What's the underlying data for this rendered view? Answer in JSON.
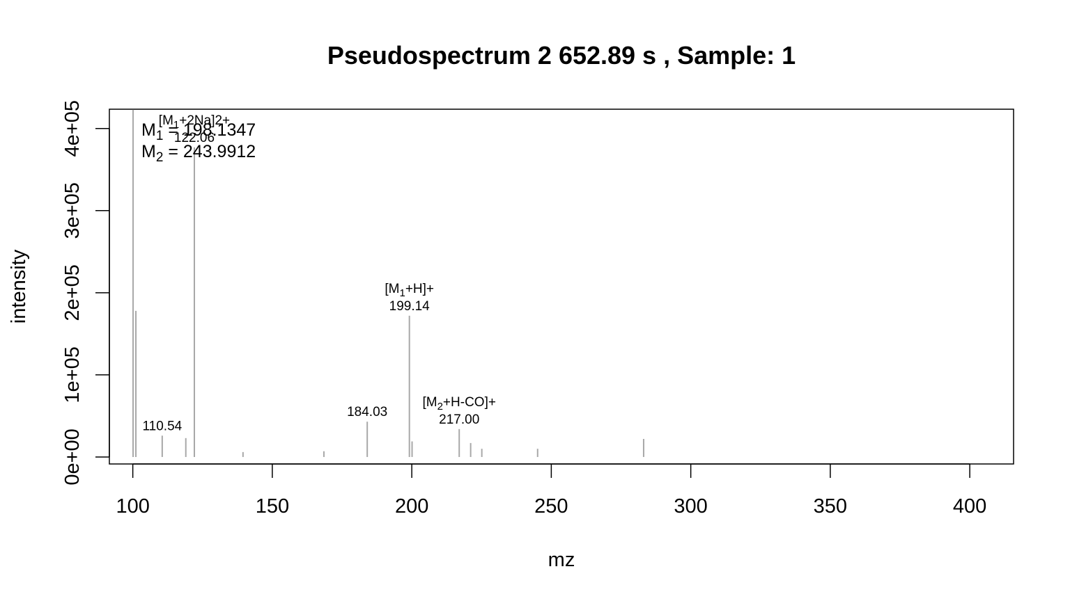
{
  "chart_data": {
    "type": "bar",
    "title": "Pseudospectrum 2 652.89 s , Sample: 1",
    "xlabel": "mz",
    "ylabel": "intensity",
    "xlim": [
      91.6,
      415.7
    ],
    "ylim": [
      -8500,
      423500
    ],
    "x_ticks": [
      {
        "value": 100,
        "label": "100"
      },
      {
        "value": 150,
        "label": "150"
      },
      {
        "value": 200,
        "label": "200"
      },
      {
        "value": 250,
        "label": "250"
      },
      {
        "value": 300,
        "label": "300"
      },
      {
        "value": 350,
        "label": "350"
      },
      {
        "value": 400,
        "label": "400"
      }
    ],
    "y_ticks": [
      {
        "value": 0,
        "label": "0e+00"
      },
      {
        "value": 100000,
        "label": "1e+05"
      },
      {
        "value": 200000,
        "label": "2e+05"
      },
      {
        "value": 300000,
        "label": "3e+05"
      },
      {
        "value": 400000,
        "label": "4e+05"
      }
    ],
    "peaks": [
      {
        "mz": 100.1,
        "intensity": 423000
      },
      {
        "mz": 101.1,
        "intensity": 178000
      },
      {
        "mz": 110.54,
        "intensity": 26000
      },
      {
        "mz": 119.0,
        "intensity": 23000
      },
      {
        "mz": 122.06,
        "intensity": 377000
      },
      {
        "mz": 139.5,
        "intensity": 6000
      },
      {
        "mz": 168.5,
        "intensity": 7000
      },
      {
        "mz": 184.03,
        "intensity": 43000
      },
      {
        "mz": 199.14,
        "intensity": 172000
      },
      {
        "mz": 200.1,
        "intensity": 19000
      },
      {
        "mz": 217.0,
        "intensity": 34000
      },
      {
        "mz": 221.1,
        "intensity": 17000
      },
      {
        "mz": 225.1,
        "intensity": 10000
      },
      {
        "mz": 245.1,
        "intensity": 10000
      },
      {
        "mz": 283.1,
        "intensity": 22000
      }
    ],
    "peak_labels": [
      {
        "mz": 122.06,
        "intensity": 377000,
        "ion_pre": "[M",
        "ion_sub": "1",
        "ion_post": "+2Na]2+",
        "value": "122.06"
      },
      {
        "mz": 110.54,
        "intensity": 26000,
        "value": "110.54"
      },
      {
        "mz": 184.03,
        "intensity": 43000,
        "value": "184.03"
      },
      {
        "mz": 199.14,
        "intensity": 172000,
        "ion_pre": "[M",
        "ion_sub": "1",
        "ion_post": "+H]+",
        "value": "199.14"
      },
      {
        "mz": 217.0,
        "intensity": 34000,
        "ion_pre": "[M",
        "ion_sub": "2",
        "ion_post": "+H-CO]+",
        "value": "217.00"
      }
    ],
    "masses": [
      {
        "name": "M",
        "sub": "1",
        "text": " = 198.1347"
      },
      {
        "name": "M",
        "sub": "2",
        "text": " = 243.9912"
      }
    ],
    "legend_position": "top-left",
    "grid": false,
    "colors": {
      "peak": "#a8a8a8",
      "axis": "#000000"
    }
  }
}
